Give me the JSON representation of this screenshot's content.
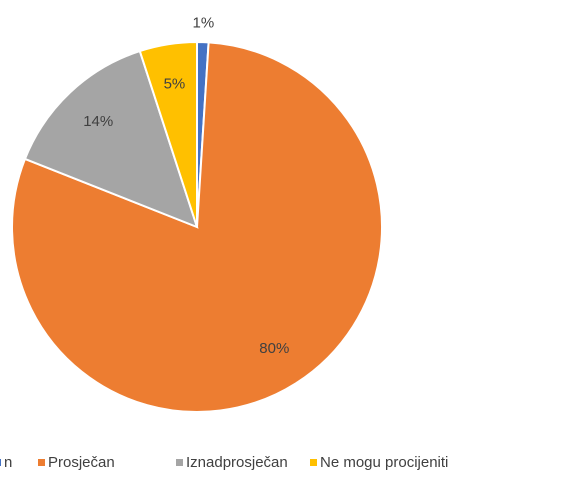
{
  "chart_data": {
    "type": "pie",
    "categories": [
      "n",
      "Prosječan",
      "Iznadprosječan",
      "Ne mogu procijeniti"
    ],
    "values": [
      1,
      80,
      14,
      5
    ],
    "value_labels": [
      "1%",
      "80%",
      "14%",
      "5%"
    ],
    "colors": [
      "#4472c4",
      "#ed7d31",
      "#a5a5a5",
      "#ffc000"
    ],
    "legend": "bottom"
  }
}
